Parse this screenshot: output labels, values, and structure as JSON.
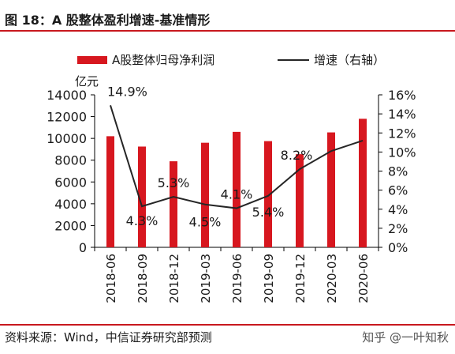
{
  "header": {
    "title": "图 18：A 股整体盈利增速-基准情形"
  },
  "footer": {
    "source": "资料来源：Wind，中信证券研究部预测",
    "watermark": "知乎 @一叶知秋"
  },
  "colors": {
    "bar": "#d7171f",
    "line": "#262626",
    "accent": "#c8181e"
  },
  "chart_data": {
    "type": "bar",
    "categories": [
      "2018-06",
      "2018-09",
      "2018-12",
      "2019-03",
      "2019-06",
      "2019-09",
      "2019-12",
      "2020-03",
      "2020-06"
    ],
    "series": [
      {
        "name": "A股整体归母净利润",
        "type": "bar",
        "axis": "left",
        "values": [
          10200,
          9250,
          7900,
          9600,
          10600,
          9750,
          8550,
          10550,
          11800
        ]
      },
      {
        "name": "增速（右轴）",
        "type": "line",
        "axis": "right",
        "values": [
          14.9,
          4.3,
          5.3,
          4.5,
          4.1,
          5.4,
          8.2,
          10.1,
          11.2
        ]
      }
    ],
    "data_labels": [
      "14.9%",
      "4.3%",
      "5.3%",
      "4.5%",
      "4.1%",
      "5.4%",
      "8.2%"
    ],
    "y_left": {
      "label": "亿元",
      "min": 0,
      "max": 14000,
      "ticks": [
        0,
        2000,
        4000,
        6000,
        8000,
        10000,
        12000,
        14000
      ]
    },
    "y_right": {
      "min": 0,
      "max": 16,
      "ticks": [
        "0%",
        "2%",
        "4%",
        "6%",
        "8%",
        "10%",
        "12%",
        "14%",
        "16%"
      ]
    },
    "grid": false,
    "legend_position": "top"
  }
}
